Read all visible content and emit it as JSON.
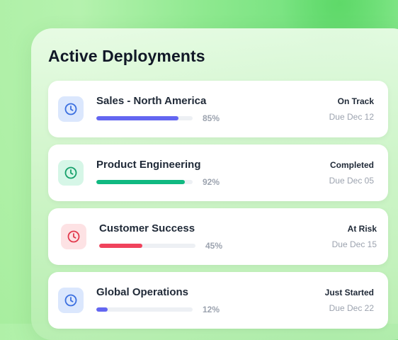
{
  "panel": {
    "title": "Active Deployments"
  },
  "deployments": [
    {
      "name": "Sales - North America",
      "progress_percent": 85,
      "progress_label": "85%",
      "status": "On Track",
      "due": "Due Dec 12",
      "icon": "clock-icon",
      "accent_color": "#6366f1",
      "icon_bg": "#dbe7fd",
      "icon_color": "#3b6fe0"
    },
    {
      "name": "Product Engineering",
      "progress_percent": 92,
      "progress_label": "92%",
      "status": "Completed",
      "due": "Due Dec 05",
      "icon": "clock-icon",
      "accent_color": "#10b981",
      "icon_bg": "#d6f6e7",
      "icon_color": "#15a06a"
    },
    {
      "name": "Customer Success",
      "progress_percent": 45,
      "progress_label": "45%",
      "status": "At Risk",
      "due": "Due Dec 15",
      "icon": "clock-icon",
      "accent_color": "#f0435c",
      "icon_bg": "#fde2e4",
      "icon_color": "#e23b4e"
    },
    {
      "name": "Global Operations",
      "progress_percent": 12,
      "progress_label": "12%",
      "status": "Just Started",
      "due": "Due Dec 22",
      "icon": "clock-icon",
      "accent_color": "#6366f1",
      "icon_bg": "#dbe7fd",
      "icon_color": "#3b6fe0"
    }
  ]
}
